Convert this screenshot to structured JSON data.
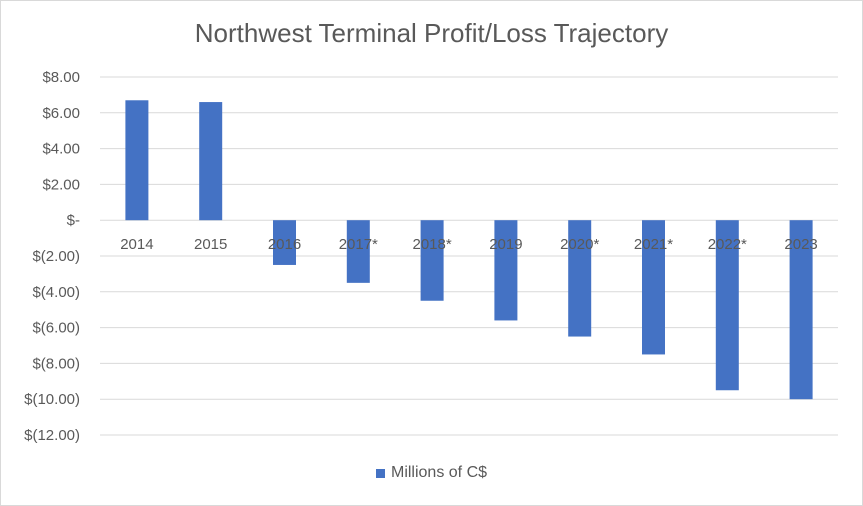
{
  "chart_data": {
    "type": "bar",
    "title": "Northwest Terminal Profit/Loss Trajectory",
    "categories": [
      "2014",
      "2015",
      "2016",
      "2017*",
      "2018*",
      "2019",
      "2020*",
      "2021*",
      "2022*",
      "2023"
    ],
    "series": [
      {
        "name": "Millions of C$",
        "values": [
          6.7,
          6.6,
          -2.5,
          -3.5,
          -4.5,
          -5.6,
          -6.5,
          -7.5,
          -9.5,
          -10.0
        ],
        "color": "#4472c4"
      }
    ],
    "ylim": [
      -12,
      8
    ],
    "ytick_labels": [
      "$8.00",
      "$6.00",
      "$4.00",
      "$2.00",
      "$-",
      "$(2.00)",
      "$(4.00)",
      "$(6.00)",
      "$(8.00)",
      "$(10.00)",
      "$(12.00)"
    ],
    "xlabel": "",
    "ylabel": "",
    "grid": true,
    "legend_position": "bottom"
  }
}
